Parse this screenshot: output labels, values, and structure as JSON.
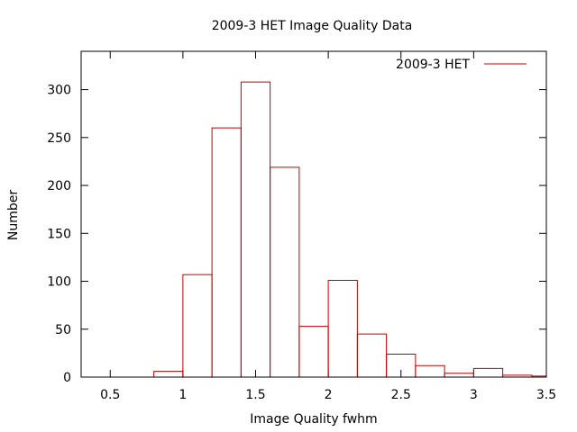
{
  "chart_data": {
    "type": "histogram",
    "title": "2009-3 HET Image Quality Data",
    "xlabel": "Image Quality fwhm",
    "ylabel": "Number",
    "xlim": [
      0.3,
      3.5
    ],
    "ylim": [
      0,
      340
    ],
    "x_ticks": [
      0.5,
      1,
      1.5,
      2,
      2.5,
      3,
      3.5
    ],
    "x_tick_labels": [
      "0.5",
      "1",
      "1.5",
      "2",
      "2.5",
      "3",
      "3.5"
    ],
    "y_ticks": [
      0,
      50,
      100,
      150,
      200,
      250,
      300
    ],
    "y_tick_labels": [
      "0",
      "50",
      "100",
      "150",
      "200",
      "250",
      "300"
    ],
    "grid": false,
    "legend_position": "top-right",
    "series": [
      {
        "name": "2009-3 HET",
        "color": "#c00000",
        "bins": [
          {
            "x0": 0.8,
            "x1": 1.0,
            "value": 6
          },
          {
            "x0": 1.0,
            "x1": 1.2,
            "value": 107
          },
          {
            "x0": 1.2,
            "x1": 1.4,
            "value": 260
          },
          {
            "x0": 1.4,
            "x1": 1.6,
            "value": 308
          },
          {
            "x0": 1.6,
            "x1": 1.8,
            "value": 219
          },
          {
            "x0": 1.8,
            "x1": 2.0,
            "value": 53
          },
          {
            "x0": 2.0,
            "x1": 2.2,
            "value": 101
          },
          {
            "x0": 2.2,
            "x1": 2.4,
            "value": 45
          },
          {
            "x0": 2.4,
            "x1": 2.6,
            "value": 24
          },
          {
            "x0": 2.6,
            "x1": 2.8,
            "value": 12
          },
          {
            "x0": 2.8,
            "x1": 3.0,
            "value": 4
          },
          {
            "x0": 3.0,
            "x1": 3.2,
            "value": 9
          },
          {
            "x0": 3.2,
            "x1": 3.4,
            "value": 2
          },
          {
            "x0": 3.4,
            "x1": 3.5,
            "value": 1
          }
        ]
      }
    ]
  }
}
